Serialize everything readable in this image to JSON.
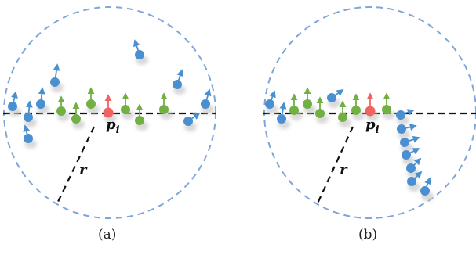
{
  "panels": [
    {
      "id": "a",
      "caption": "(a)",
      "center_label_base": "p",
      "center_label_sub": "i",
      "radius_label": "r"
    },
    {
      "id": "b",
      "caption": "(b)",
      "center_label_base": "p",
      "center_label_sub": "i",
      "radius_label": "r"
    }
  ],
  "colors": {
    "neighbor_blue": "#4a90d0",
    "neighbor_green": "#72b043",
    "center_red": "#f06363",
    "circle_dash": "#7fa6d6",
    "line": "#111111",
    "shadow": "#c9c9c9"
  },
  "legend_semantics": {
    "green": "coplanar neighbor with normal aligned",
    "blue": "non-coplanar neighbor",
    "red": "query point"
  }
}
